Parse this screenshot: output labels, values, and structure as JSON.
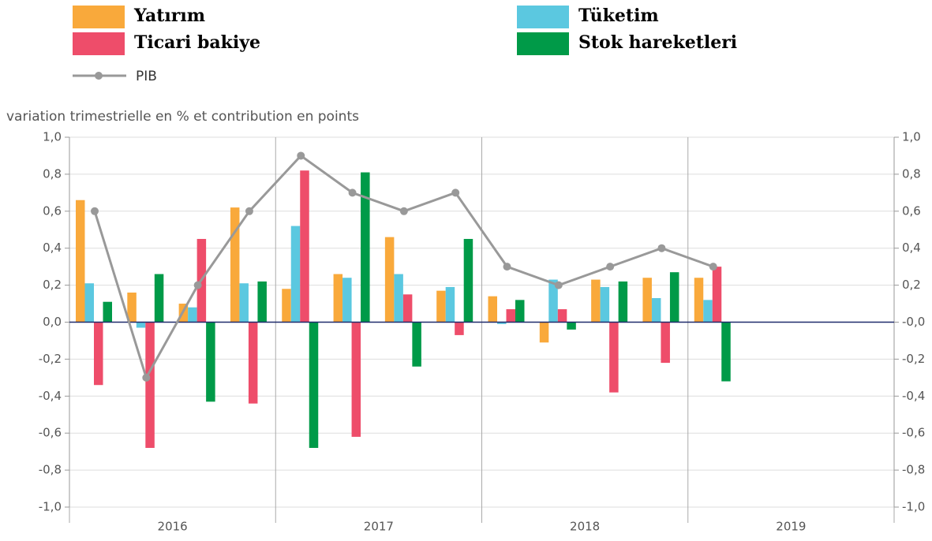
{
  "chart_data": {
    "type": "bar",
    "y_label": "variation trimestrielle en % et contribution en points",
    "categories": [
      null,
      null,
      null,
      null,
      null,
      null,
      null,
      null,
      null,
      null,
      null,
      null,
      null,
      null,
      null,
      null
    ],
    "x_groups": [
      "2016",
      "2017",
      "2018",
      "2019"
    ],
    "series": [
      {
        "name": "Yatırım",
        "color": "#f9a93b",
        "values": [
          0.66,
          0.16,
          0.1,
          0.62,
          0.18,
          0.26,
          0.46,
          0.17,
          0.14,
          -0.11,
          0.23,
          0.24,
          0.24,
          null,
          null,
          null
        ]
      },
      {
        "name": "Tüketim",
        "color": "#5bc8e0",
        "values": [
          0.21,
          -0.03,
          0.08,
          0.21,
          0.52,
          0.24,
          0.26,
          0.19,
          -0.01,
          0.23,
          0.19,
          0.13,
          0.12,
          null,
          null,
          null
        ]
      },
      {
        "name": "Ticari bakiye",
        "color": "#ee4d6a",
        "values": [
          -0.34,
          -0.68,
          0.45,
          -0.44,
          0.82,
          -0.62,
          0.15,
          -0.07,
          0.07,
          0.07,
          -0.38,
          -0.22,
          0.3,
          null,
          null,
          null
        ]
      },
      {
        "name": "Stok hareketleri",
        "color": "#009a48",
        "values": [
          0.11,
          0.26,
          -0.43,
          0.22,
          -0.68,
          0.81,
          -0.24,
          0.45,
          0.12,
          -0.04,
          0.22,
          0.27,
          -0.32,
          null,
          null,
          null
        ]
      },
      {
        "name": "PIB",
        "type": "line",
        "color": "#999999",
        "values": [
          0.6,
          -0.3,
          0.2,
          0.6,
          0.9,
          0.7,
          0.6,
          0.7,
          0.3,
          0.2,
          0.3,
          0.4,
          0.3,
          null,
          null,
          null
        ]
      }
    ],
    "ylim": [
      -1.0,
      1.0
    ],
    "yticks": [
      {
        "value": 1.0,
        "label": "1,0"
      },
      {
        "value": 0.8,
        "label": "0,8"
      },
      {
        "value": 0.6,
        "label": "0,6"
      },
      {
        "value": 0.4,
        "label": "0,4"
      },
      {
        "value": 0.2,
        "label": "0,2"
      },
      {
        "value": 0,
        "label": "0,0"
      },
      {
        "value": -0.2,
        "label": "-0,2"
      },
      {
        "value": -0.4,
        "label": "-0,4"
      },
      {
        "value": -0.6,
        "label": "-0,6"
      },
      {
        "value": -0.8,
        "label": "-0,8"
      },
      {
        "value": -1.0,
        "label": "-1,0"
      }
    ],
    "y2lim": [
      -1.0,
      1.0
    ],
    "y2ticks": [
      {
        "value": 1.0,
        "label": "1,0"
      },
      {
        "value": 0.8,
        "label": "0,8"
      },
      {
        "value": 0.6,
        "label": "0,6"
      },
      {
        "value": 0.4,
        "label": "0,4"
      },
      {
        "value": 0.2,
        "label": "0,2"
      },
      {
        "value": 0,
        "label": "-0,0"
      },
      {
        "value": -0.2,
        "label": "-0,2"
      },
      {
        "value": -0.4,
        "label": "-0,4"
      },
      {
        "value": -0.6,
        "label": "-0,6"
      },
      {
        "value": -0.8,
        "label": "-0,8"
      },
      {
        "value": -1.0,
        "label": "-1,0"
      }
    ],
    "grid": true
  }
}
